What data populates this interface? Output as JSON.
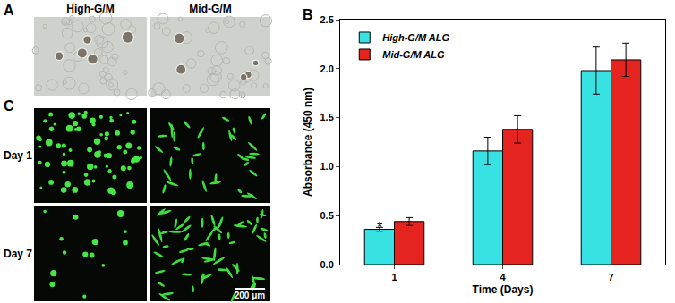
{
  "chart_label": "B",
  "micrographs": {
    "A": {
      "label": "A",
      "columns": [
        "High-G/M",
        "Mid-G/M"
      ]
    },
    "C": {
      "label": "C",
      "rows": [
        "Day 1",
        "Day 7"
      ],
      "scale_bar": "200 μm"
    }
  },
  "chart_data": {
    "type": "bar",
    "x_label": "Time (Days)",
    "y_label": "Absorbance (450 nm)",
    "categories": [
      "1",
      "4",
      "7"
    ],
    "series": [
      {
        "name": "High-G/M ALG",
        "color": "#38e2e2",
        "values": [
          0.36,
          1.16,
          1.98
        ],
        "errors": [
          0.02,
          0.14,
          0.24
        ]
      },
      {
        "name": "Mid-G/M ALG",
        "color": "#e5231f",
        "values": [
          0.44,
          1.38,
          2.09
        ],
        "errors": [
          0.04,
          0.14,
          0.17
        ]
      }
    ],
    "ylim": [
      0,
      2.5
    ],
    "yticks": [
      {
        "value": 0,
        "label": "0.0"
      },
      0.5,
      {
        "value": 1,
        "label": "1.0"
      },
      1.5,
      {
        "value": 2,
        "label": "2.0"
      },
      2.5
    ],
    "legend": "top-left",
    "grid": false,
    "annotations": [
      {
        "text": "*",
        "category": "1",
        "series": "High-G/M ALG"
      }
    ]
  }
}
